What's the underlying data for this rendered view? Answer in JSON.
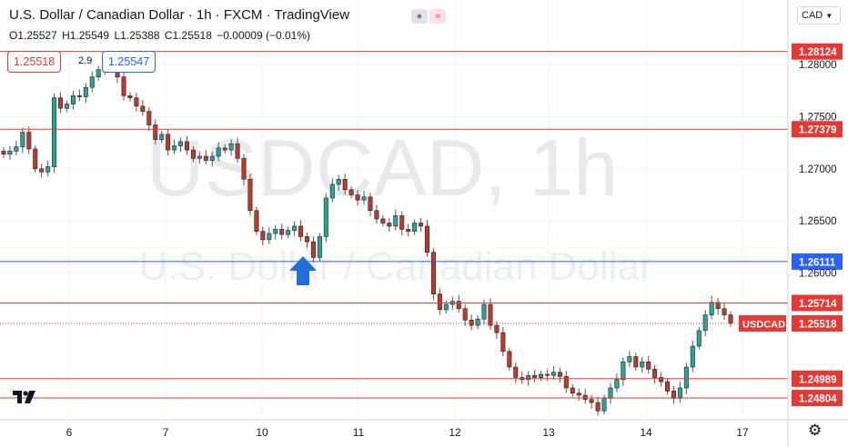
{
  "header": {
    "title": "U.S. Dollar / Canadian Dollar · 1h · FXCM · TradingView",
    "ohlc": {
      "o": "O1.25527",
      "h": "H1.25549",
      "l": "L1.25388",
      "c": "C1.25518",
      "chg": "−0.00009 (−0.01%)"
    },
    "sell_price": "1.25518",
    "spread": "2.9",
    "buy_price": "1.25547",
    "currency": "CAD"
  },
  "watermark": {
    "symbol": "USDCAD, 1h",
    "name": "U.S. Dollar / Canadian Dollar"
  },
  "colors": {
    "up": "#26a69a",
    "down": "#c0392b",
    "candle_body": "#222222",
    "level": "#e53935",
    "blue": "#2962ff"
  },
  "chart_data": {
    "type": "candlestick",
    "x_ticks": [
      "6",
      "7",
      "10",
      "11",
      "12",
      "13",
      "14",
      "17"
    ],
    "y_ticks": [
      "1.28000",
      "1.27500",
      "1.27000",
      "1.26500",
      "1.26000"
    ],
    "ylim": [
      1.2463,
      1.286
    ],
    "resistance_levels": [
      {
        "label": "1.28124",
        "value": 1.28124
      },
      {
        "label": "1.27379",
        "value": 1.27379
      },
      {
        "label": "1.25714",
        "value": 1.25714
      },
      {
        "label": "1.24989",
        "value": 1.24989
      },
      {
        "label": "1.24804",
        "value": 1.24804
      }
    ],
    "pivot_level": {
      "label": "1.26111",
      "value": 1.26111
    },
    "last_price": {
      "symbol": "USDCAD",
      "label": "1.25518",
      "value": 1.25518
    },
    "arrow": "up",
    "closes": [
      1.2714,
      1.2717,
      1.2721,
      1.2735,
      1.2719,
      1.27,
      1.2697,
      1.2702,
      1.2768,
      1.2758,
      1.2762,
      1.277,
      1.2769,
      1.2778,
      1.2788,
      1.2795,
      1.28,
      1.2803,
      1.2788,
      1.277,
      1.2768,
      1.276,
      1.2755,
      1.2742,
      1.2728,
      1.2733,
      1.2718,
      1.2722,
      1.2726,
      1.2718,
      1.271,
      1.2712,
      1.2708,
      1.2712,
      1.272,
      1.2718,
      1.2724,
      1.271,
      1.269,
      1.266,
      1.264,
      1.2632,
      1.2638,
      1.2642,
      1.2637,
      1.2641,
      1.2645,
      1.2635,
      1.263,
      1.2615,
      1.2635,
      1.2672,
      1.2685,
      1.269,
      1.268,
      1.2675,
      1.267,
      1.2673,
      1.266,
      1.2652,
      1.2648,
      1.2645,
      1.2655,
      1.2642,
      1.264,
      1.2648,
      1.2645,
      1.262,
      1.258,
      1.2565,
      1.257,
      1.2573,
      1.2566,
      1.2555,
      1.255,
      1.2556,
      1.257,
      1.255,
      1.2543,
      1.2525,
      1.251,
      1.25,
      1.2498,
      1.2502,
      1.25,
      1.2503,
      1.2502,
      1.2505,
      1.2501,
      1.249,
      1.2485,
      1.2483,
      1.2479,
      1.2476,
      1.2468,
      1.248,
      1.249,
      1.2498,
      1.2515,
      1.252,
      1.251,
      1.2515,
      1.2508,
      1.25,
      1.2496,
      1.2487,
      1.248,
      1.249,
      1.251,
      1.253,
      1.2545,
      1.256,
      1.2572,
      1.2566,
      1.256,
      1.2552
    ]
  }
}
